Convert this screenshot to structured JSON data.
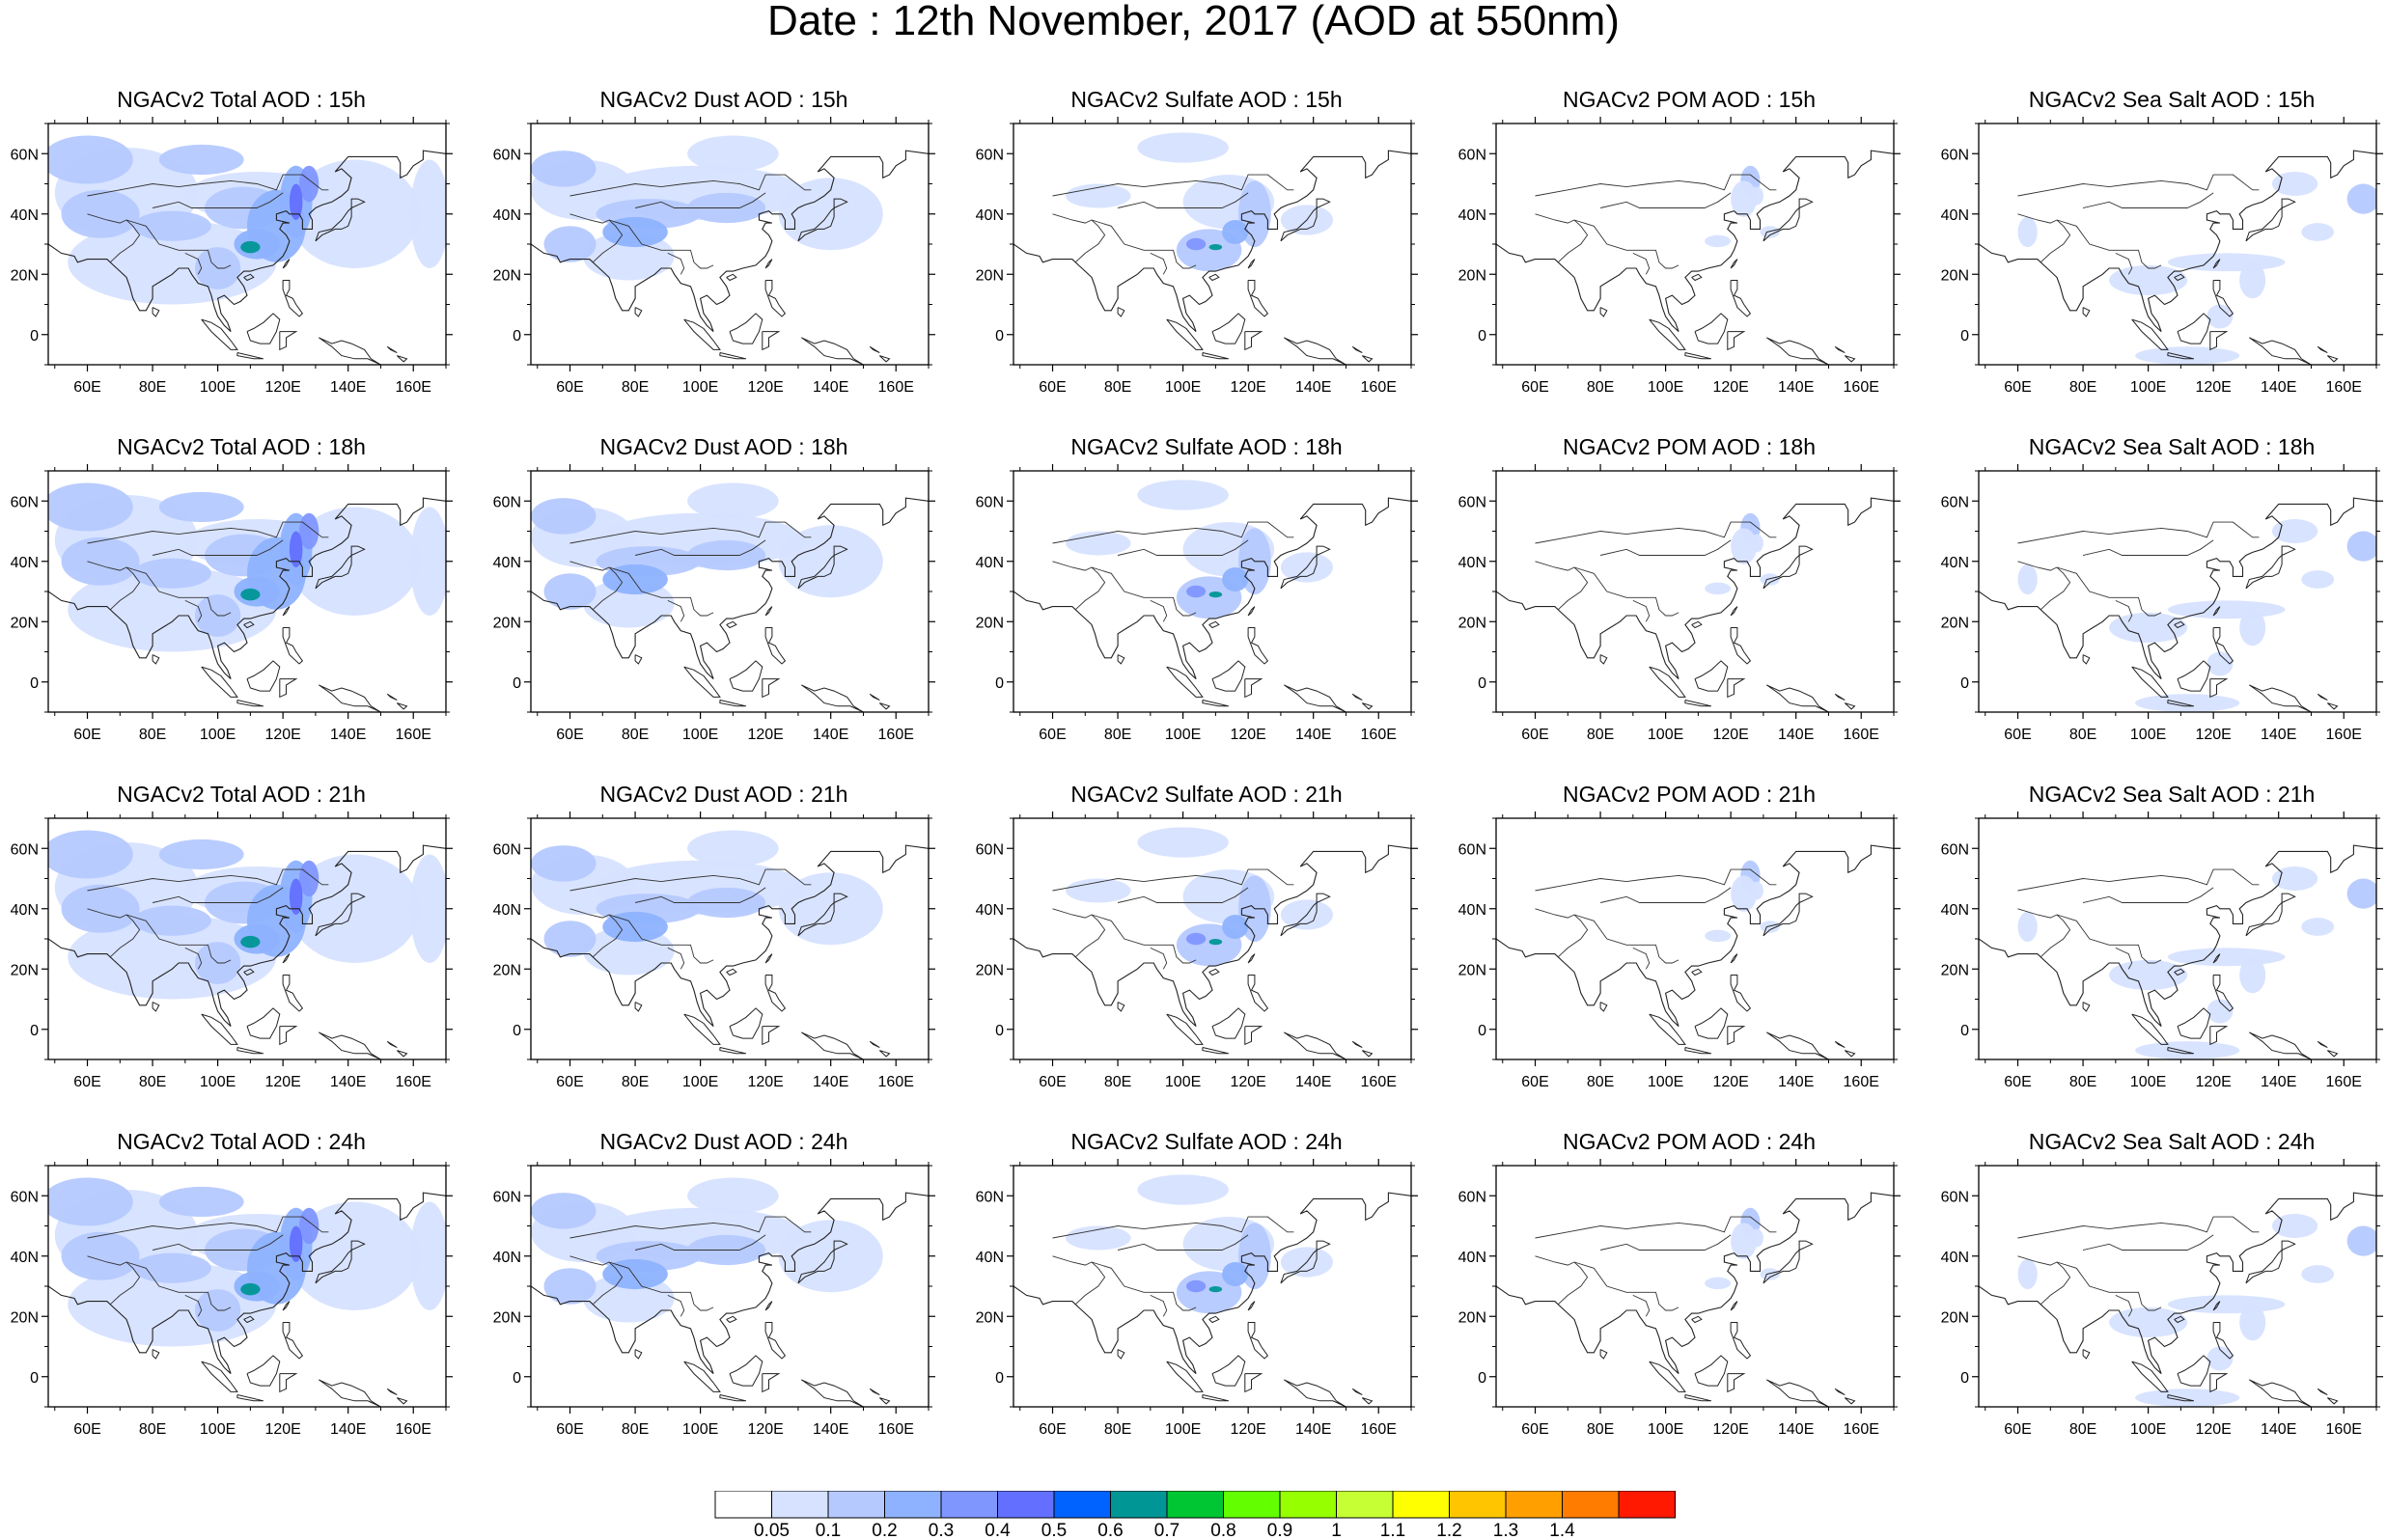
{
  "figure": {
    "title": "Date : 12th November, 2017 (AOD at 550nm)"
  },
  "axes": {
    "lon_ticks": [
      "60E",
      "80E",
      "100E",
      "120E",
      "140E",
      "160E"
    ],
    "lat_ticks": [
      "60N",
      "40N",
      "20N",
      "0"
    ],
    "lon_range": [
      48,
      170
    ],
    "lat_range": [
      -10,
      70
    ]
  },
  "panels": [
    {
      "title": "NGACv2 Total AOD : 15h",
      "species": "total",
      "hour": 15
    },
    {
      "title": "NGACv2 Dust AOD : 15h",
      "species": "dust",
      "hour": 15
    },
    {
      "title": "NGACv2 Sulfate AOD : 15h",
      "species": "sulfate",
      "hour": 15
    },
    {
      "title": "NGACv2 POM AOD : 15h",
      "species": "pom",
      "hour": 15
    },
    {
      "title": "NGACv2 Sea Salt AOD : 15h",
      "species": "seasalt",
      "hour": 15
    },
    {
      "title": "NGACv2 Total AOD : 18h",
      "species": "total",
      "hour": 18
    },
    {
      "title": "NGACv2 Dust AOD : 18h",
      "species": "dust",
      "hour": 18
    },
    {
      "title": "NGACv2 Sulfate AOD : 18h",
      "species": "sulfate",
      "hour": 18
    },
    {
      "title": "NGACv2 POM AOD : 18h",
      "species": "pom",
      "hour": 18
    },
    {
      "title": "NGACv2 Sea Salt AOD : 18h",
      "species": "seasalt",
      "hour": 18
    },
    {
      "title": "NGACv2 Total AOD : 21h",
      "species": "total",
      "hour": 21
    },
    {
      "title": "NGACv2 Dust AOD : 21h",
      "species": "dust",
      "hour": 21
    },
    {
      "title": "NGACv2 Sulfate AOD : 21h",
      "species": "sulfate",
      "hour": 21
    },
    {
      "title": "NGACv2 POM AOD : 21h",
      "species": "pom",
      "hour": 21
    },
    {
      "title": "NGACv2 Sea Salt AOD : 21h",
      "species": "seasalt",
      "hour": 21
    },
    {
      "title": "NGACv2 Total AOD : 24h",
      "species": "total",
      "hour": 24
    },
    {
      "title": "NGACv2 Dust AOD : 24h",
      "species": "dust",
      "hour": 24
    },
    {
      "title": "NGACv2 Sulfate AOD : 24h",
      "species": "sulfate",
      "hour": 24
    },
    {
      "title": "NGACv2 POM AOD : 24h",
      "species": "pom",
      "hour": 24
    },
    {
      "title": "NGACv2 Sea Salt  AOD : 24h",
      "species": "seasalt",
      "hour": 24
    }
  ],
  "colorbar": {
    "levels": [
      "0.05",
      "0.1",
      "0.2",
      "0.3",
      "0.4",
      "0.5",
      "0.6",
      "0.7",
      "0.8",
      "0.9",
      "1",
      "1.1",
      "1.2",
      "1.3",
      "1.4"
    ],
    "colors": [
      "#ffffff",
      "#d6e2ff",
      "#b5c9ff",
      "#8eb2ff",
      "#7f96ff",
      "#6370ff",
      "#0063ff",
      "#009696",
      "#00c633",
      "#63ff00",
      "#96ff00",
      "#c6ff33",
      "#ffff00",
      "#ffc600",
      "#ffa000",
      "#ff7c00",
      "#ff1900"
    ]
  }
}
